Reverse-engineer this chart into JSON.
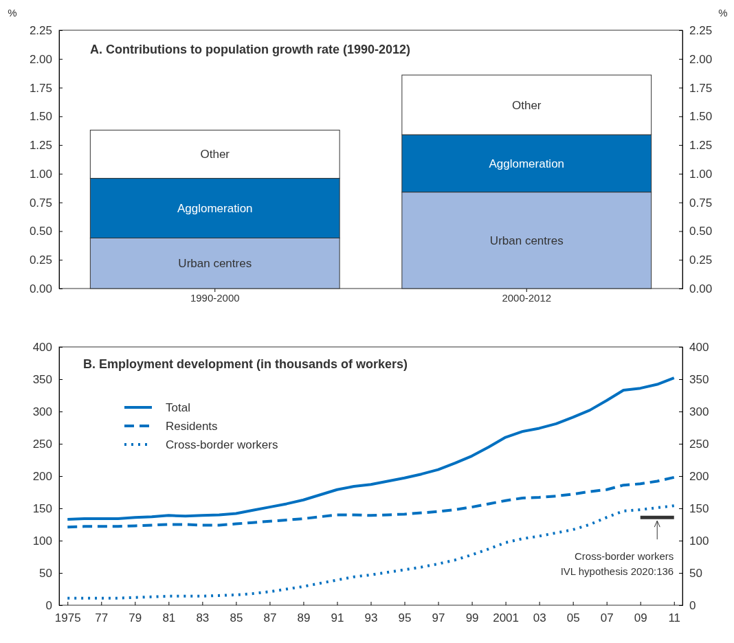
{
  "chart_data": [
    {
      "type": "bar",
      "title": "A. Contributions to population growth rate (1990-2012)",
      "ylabel": "%",
      "y2label": "%",
      "categories": [
        "1990-2000",
        "2000-2012"
      ],
      "stacked": true,
      "grid": false,
      "series": [
        {
          "name": "Urban centres",
          "color": "#a0b8e0",
          "values": [
            0.44,
            0.84
          ]
        },
        {
          "name": "Agglomeration",
          "color": "#0070b8",
          "values": [
            0.52,
            0.5
          ]
        },
        {
          "name": "Other",
          "color": "#ffffff",
          "values": [
            0.42,
            0.52
          ]
        }
      ],
      "ylim": [
        0,
        2.25
      ],
      "yticks": [
        {
          "value": 0,
          "label": "0.00"
        },
        {
          "value": 0.25,
          "label": "0.25"
        },
        {
          "value": 0.5,
          "label": "0.50"
        },
        {
          "value": 0.75,
          "label": "0.75"
        },
        {
          "value": 1,
          "label": "1.00"
        },
        {
          "value": 1.25,
          "label": "1.25"
        },
        {
          "value": 1.5,
          "label": "1.50"
        },
        {
          "value": 1.75,
          "label": "1.75"
        },
        {
          "value": 2,
          "label": "2.00"
        },
        {
          "value": 2.25,
          "label": "2.25"
        }
      ],
      "y2lim": [
        0,
        2.25
      ],
      "y2ticks": [
        {
          "value": 0,
          "label": "0.00"
        },
        {
          "value": 0.25,
          "label": "0.25"
        },
        {
          "value": 0.5,
          "label": "0.50"
        },
        {
          "value": 0.75,
          "label": "0.75"
        },
        {
          "value": 1,
          "label": "1.00"
        },
        {
          "value": 1.25,
          "label": "1.25"
        },
        {
          "value": 1.5,
          "label": "1.50"
        },
        {
          "value": 1.75,
          "label": "1.75"
        },
        {
          "value": 2,
          "label": "2.00"
        },
        {
          "value": 2.25,
          "label": "2.25"
        }
      ]
    },
    {
      "type": "line",
      "title": "B. Employment development (in thousands of workers)",
      "legend": "top left",
      "grid": false,
      "marker": "none",
      "x": [
        1975,
        1976,
        1977,
        1978,
        1979,
        1980,
        1981,
        1982,
        1983,
        1984,
        1985,
        1986,
        1987,
        1988,
        1989,
        1990,
        1991,
        1992,
        1993,
        1994,
        1995,
        1996,
        1997,
        1998,
        1999,
        2000,
        2001,
        2002,
        2003,
        2004,
        2005,
        2006,
        2007,
        2008,
        2009,
        2010,
        2011
      ],
      "series": [
        {
          "name": "Total",
          "color": "#0070c0",
          "line_style": "solid",
          "values": [
            133,
            134,
            134,
            134,
            136,
            137,
            139,
            138,
            139,
            140,
            142,
            147,
            152,
            157,
            163,
            171,
            179,
            184,
            187,
            192,
            197,
            203,
            210,
            220,
            231,
            245,
            260,
            269,
            274,
            281,
            291,
            302,
            317,
            333,
            336,
            342,
            352
          ]
        },
        {
          "name": "Residents",
          "color": "#0070c0",
          "line_style": "dashed",
          "values": [
            121,
            122,
            122,
            122,
            123,
            124,
            125,
            125,
            124,
            124,
            126,
            128,
            130,
            132,
            134,
            137,
            140,
            140,
            139,
            140,
            141,
            143,
            145,
            148,
            152,
            157,
            162,
            166,
            167,
            169,
            172,
            176,
            179,
            186,
            188,
            192,
            198
          ]
        },
        {
          "name": "Cross-border workers",
          "color": "#0070c0",
          "line_style": "dotted",
          "values": [
            11,
            11,
            11,
            11,
            12,
            13,
            14,
            14,
            14,
            15,
            16,
            18,
            21,
            25,
            29,
            34,
            39,
            44,
            47,
            51,
            55,
            59,
            64,
            70,
            78,
            87,
            97,
            103,
            107,
            112,
            117,
            125,
            136,
            146,
            148,
            151,
            154
          ]
        },
        {
          "color": "#333333",
          "line_style": "solid",
          "x": [
            2009,
            2011
          ],
          "values": [
            136,
            136
          ]
        }
      ],
      "annotations": [
        {
          "text": "Cross-border workers\nIVL hypothesis 2020:136",
          "x": 2010,
          "y": 136
        }
      ],
      "xlim": [
        1974.5,
        2011.5
      ],
      "xticks": [
        1975,
        {
          "value": 1977,
          "label": "77"
        },
        {
          "value": 1979,
          "label": "79"
        },
        {
          "value": 1981,
          "label": "81"
        },
        {
          "value": 1983,
          "label": "83"
        },
        {
          "value": 1985,
          "label": "85"
        },
        {
          "value": 1987,
          "label": "87"
        },
        {
          "value": 1989,
          "label": "89"
        },
        {
          "value": 1991,
          "label": "91"
        },
        {
          "value": 1993,
          "label": "93"
        },
        {
          "value": 1995,
          "label": "95"
        },
        {
          "value": 1997,
          "label": "97"
        },
        {
          "value": 1999,
          "label": "99"
        },
        2001,
        {
          "value": 2003,
          "label": "03"
        },
        {
          "value": 2005,
          "label": "05"
        },
        {
          "value": 2007,
          "label": "07"
        },
        {
          "value": 2009,
          "label": "09"
        },
        {
          "value": 2011,
          "label": "11"
        }
      ],
      "ylim": [
        0,
        400
      ],
      "yticks": [
        0,
        50,
        100,
        150,
        200,
        250,
        300,
        350,
        400
      ],
      "y2lim": [
        0,
        400
      ],
      "y2ticks": [
        0,
        50,
        100,
        150,
        200,
        250,
        300,
        350,
        400
      ]
    }
  ]
}
